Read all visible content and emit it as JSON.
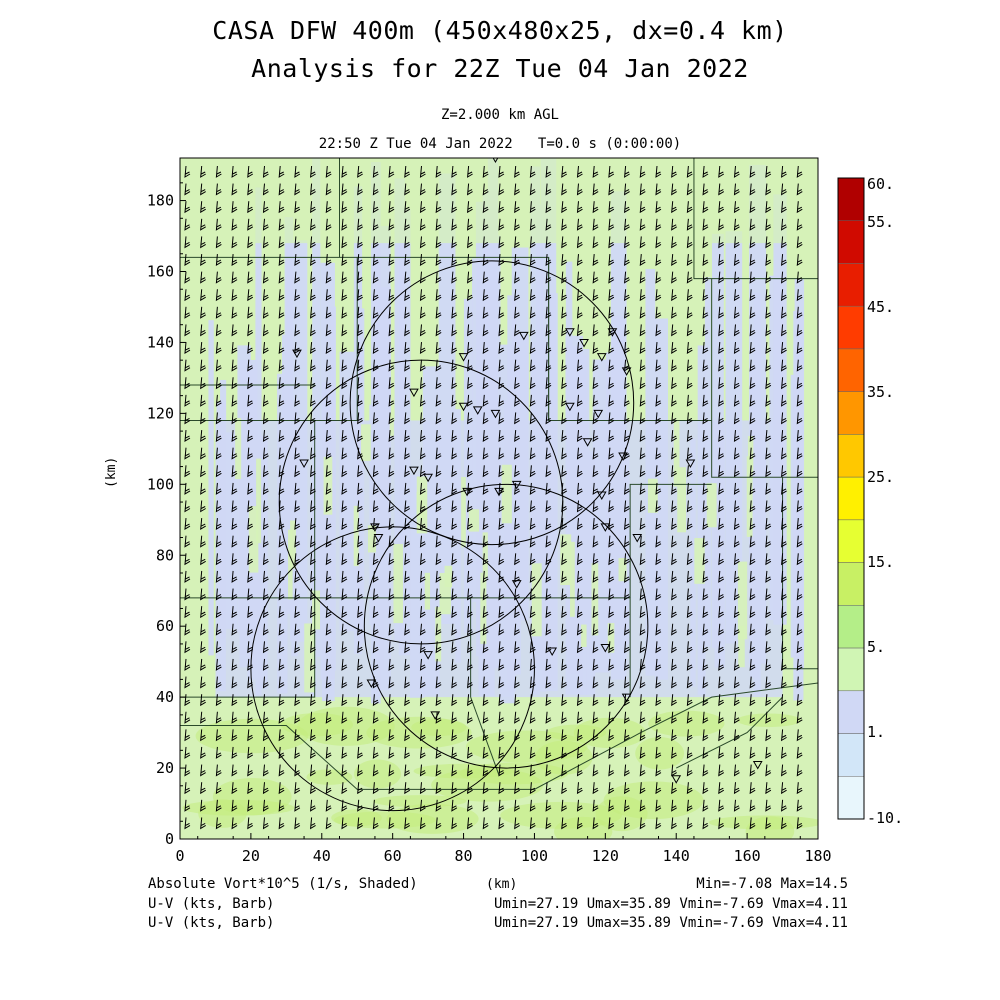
{
  "title": {
    "line1": "CASA DFW 400m (450x480x25, dx=0.4 km)",
    "line2": "Analysis for 22Z Tue 04 Jan 2022"
  },
  "subtitle": {
    "level": "Z=2.000 km AGL",
    "time": "22:50 Z Tue 04 Jan 2022   T=0.0 s (0:00:00)"
  },
  "footer": {
    "field_label": "Absolute Vort*10^5 (1/s, Shaded)",
    "x_unit": "(km)",
    "minmax": "Min=-7.08 Max=14.5",
    "wind1_label": "U-V (kts, Barb)",
    "wind1_stats": "Umin=27.19 Umax=35.89 Vmin=-7.69 Vmax=4.11",
    "wind2_label": "U-V (kts, Barb)",
    "wind2_stats": "Umin=27.19 Umax=35.89 Vmin=-7.69 Vmax=4.11"
  },
  "colors": {
    "field_low": "#d0d8f5",
    "field_mid": "#d6f2b8",
    "field_high": "#c4ed7e",
    "barb": "#000000",
    "circle": "#000000"
  },
  "chart_data": {
    "type": "heatmap",
    "ylabel": "(km)",
    "xlabel": "(km)",
    "xlim": [
      0,
      180
    ],
    "ylim": [
      0,
      192
    ],
    "x_ticks": [
      0,
      20,
      40,
      60,
      80,
      100,
      120,
      140,
      160,
      180
    ],
    "y_ticks": [
      0,
      20,
      40,
      60,
      80,
      100,
      120,
      140,
      160,
      180
    ],
    "colorbar": {
      "labels": [
        "60.",
        "55.",
        "45.",
        "35.",
        "25.",
        "15.",
        "5.",
        "1.",
        "-10."
      ],
      "colors": [
        "#b00000",
        "#d00a00",
        "#e81e00",
        "#ff3c00",
        "#ff6400",
        "#ff9600",
        "#ffc800",
        "#fff000",
        "#e6ff32",
        "#c8f064",
        "#b4ee88",
        "#d0f5b4",
        "#d0d8f5",
        "#d2e6f8",
        "#e8f6fc"
      ]
    },
    "radar_rings": [
      {
        "cx": 88,
        "cy": 123,
        "r": 40
      },
      {
        "cx": 68,
        "cy": 95,
        "r": 40
      },
      {
        "cx": 92,
        "cy": 60,
        "r": 40
      },
      {
        "cx": 60,
        "cy": 48,
        "r": 40
      }
    ],
    "wind": {
      "u_range": [
        27.19,
        35.89
      ],
      "v_range": [
        -7.69,
        4.11
      ]
    },
    "field_range": {
      "min": -7.08,
      "max": 14.5
    }
  }
}
